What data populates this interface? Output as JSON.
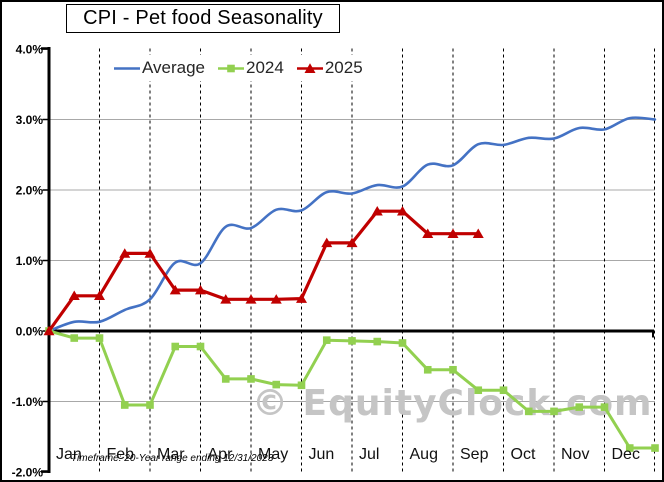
{
  "title": "CPI - Pet food Seasonality",
  "watermark": "© EquityClock.com",
  "footnote": "Timeframe: 20-Year range ending 12/31/2023",
  "legend": {
    "position": "top",
    "items": [
      {
        "label": "Average",
        "color": "#4472C4",
        "marker": "line"
      },
      {
        "label": "2024",
        "color": "#92D050",
        "marker": "square"
      },
      {
        "label": "2025",
        "color": "#C00000",
        "marker": "triangle"
      }
    ]
  },
  "chart_data": {
    "type": "line",
    "title": "CPI - Pet food Seasonality",
    "xlabel": "",
    "ylabel": "",
    "x_unit": "months, semi-monthly data points (0 = Jan 1, 0.5 = mid-Jan ... 12 = Dec 31)",
    "xlabels": [
      "Jan",
      "Feb",
      "Mar",
      "Apr",
      "May",
      "Jun",
      "Jul",
      "Aug",
      "Sep",
      "Oct",
      "Nov",
      "Dec"
    ],
    "xlim": [
      0,
      12
    ],
    "ylim": [
      -2.0,
      4.0
    ],
    "grid": {
      "horizontal": "solid gray at 1% steps",
      "vertical": "dashed black at month boundaries"
    },
    "yticks": [
      {
        "label": "4.0%",
        "value": 4.0,
        "grid": false
      },
      {
        "label": "3.0%",
        "value": 3.0,
        "grid": true
      },
      {
        "label": "2.0%",
        "value": 2.0,
        "grid": true
      },
      {
        "label": "1.0%",
        "value": 1.0,
        "grid": true
      },
      {
        "label": "0.0%",
        "value": 0.0,
        "grid": false
      },
      {
        "label": "-1.0%",
        "value": -1.0,
        "grid": true
      },
      {
        "label": "-2.0%",
        "value": -2.0,
        "grid": false
      }
    ],
    "series": [
      {
        "name": "Average",
        "color": "#4472C4",
        "marker": "none",
        "smooth": true,
        "width": 2.6,
        "x": [
          0,
          0.5,
          1,
          1.5,
          2,
          2.5,
          3,
          3.5,
          4,
          4.5,
          5,
          5.5,
          6,
          6.5,
          7,
          7.5,
          8,
          8.5,
          9,
          9.5,
          10,
          10.5,
          11,
          11.5,
          12
        ],
        "values": [
          0.0,
          0.13,
          0.13,
          0.3,
          0.45,
          0.97,
          0.96,
          1.48,
          1.46,
          1.72,
          1.71,
          1.97,
          1.95,
          2.07,
          2.05,
          2.36,
          2.35,
          2.65,
          2.64,
          2.74,
          2.73,
          2.88,
          2.86,
          3.02,
          3.0
        ]
      },
      {
        "name": "2024",
        "color": "#92D050",
        "marker": "square",
        "smooth": false,
        "width": 3,
        "x": [
          0,
          0.5,
          1,
          1.5,
          2,
          2.5,
          3,
          3.5,
          4,
          4.5,
          5,
          5.5,
          6,
          6.5,
          7,
          7.5,
          8,
          8.5,
          9,
          9.5,
          10,
          10.5,
          11,
          11.5,
          12
        ],
        "values": [
          0.0,
          -0.1,
          -0.1,
          -1.05,
          -1.05,
          -0.22,
          -0.22,
          -0.68,
          -0.68,
          -0.76,
          -0.77,
          -0.13,
          -0.14,
          -0.15,
          -0.17,
          -0.55,
          -0.55,
          -0.84,
          -0.84,
          -1.14,
          -1.14,
          -1.08,
          -1.08,
          -1.66,
          -1.66
        ]
      },
      {
        "name": "2025",
        "color": "#C00000",
        "marker": "triangle",
        "smooth": false,
        "width": 3.2,
        "x": [
          0,
          0.5,
          1,
          1.5,
          2,
          2.5,
          3,
          3.5,
          4,
          4.5,
          5,
          5.5,
          6,
          6.5,
          7,
          7.5,
          8,
          8.5
        ],
        "values": [
          0.0,
          0.5,
          0.5,
          1.1,
          1.1,
          0.58,
          0.58,
          0.45,
          0.45,
          0.45,
          0.46,
          1.25,
          1.25,
          1.7,
          1.7,
          1.38,
          1.38,
          1.38
        ]
      }
    ]
  }
}
